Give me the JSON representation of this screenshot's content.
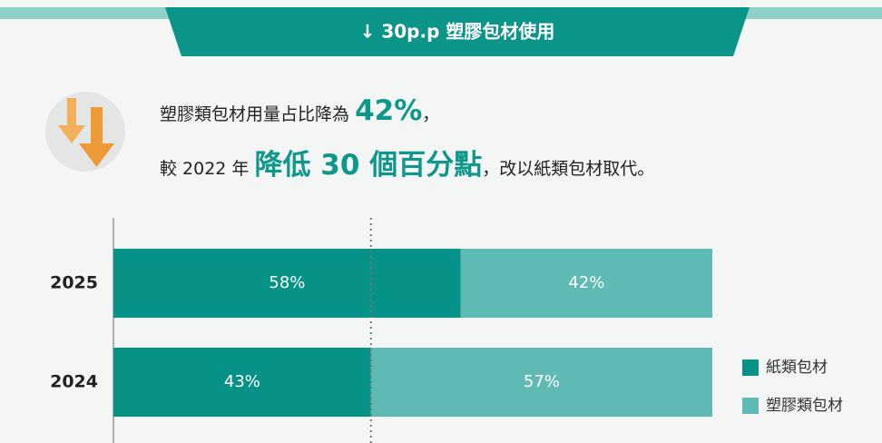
{
  "banner": "↓ 30p.p 塑膠包材使用",
  "headline": {
    "line1": {
      "text": "塑膠類包材用量占比降為",
      "highlight": "42%",
      "tail": "，"
    },
    "line2": {
      "text": "較 2022 年",
      "highlight": "降低 30 個百分點",
      "tail": "，改以紙類包材取代。"
    }
  },
  "chart_data": {
    "type": "stacked-barh",
    "categories": [
      "2025",
      "2024"
    ],
    "xlim": [
      0,
      100
    ],
    "series": [
      {
        "name": "紙類包材",
        "color": "#079287",
        "values": [
          58,
          43
        ],
        "value_labels": [
          "58%",
          "43%"
        ]
      },
      {
        "name": "塑膠類包材",
        "color": "#5fbab4",
        "values": [
          42,
          57
        ],
        "value_labels": [
          "42%",
          "57%"
        ]
      }
    ],
    "legend": "right"
  }
}
